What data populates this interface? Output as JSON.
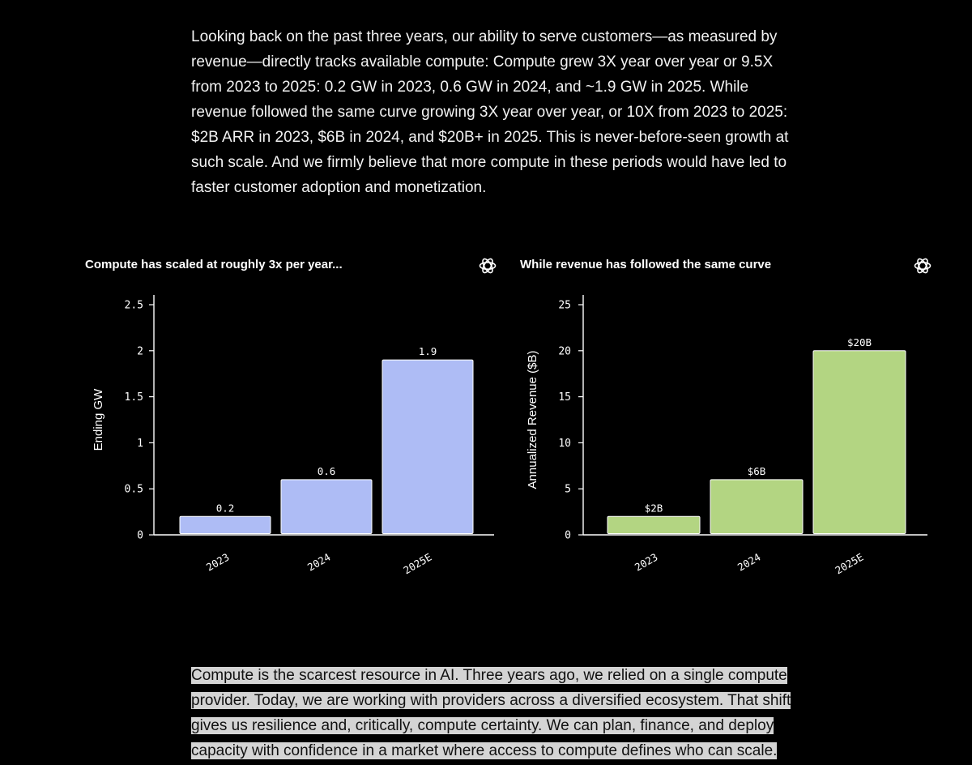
{
  "intro": {
    "paragraph": "Looking back on the past three years, our ability to serve customers—as measured by revenue—directly tracks available compute: Compute grew 3X year over year or 9.5X from 2023 to 2025: 0.2 GW in 2023, 0.6 GW in 2024, and ~1.9 GW in 2025. While revenue followed the same curve growing 3X year over year, or 10X from 2023 to 2025: $2B ARR in 2023, $6B in 2024, and $20B+ in 2025. This is never-before-seen growth at such scale. And we firmly believe that more compute in these periods would have led to faster customer adoption and monetization."
  },
  "outro": {
    "paragraph": "Compute is the scarcest resource in AI. Three years ago, we relied on a single compute provider. Today, we are working with providers across a diversified ecosystem. That shift gives us resilience and, critically, compute certainty. We can plan, finance, and deploy capacity with confidence in a market where access to compute defines who can scale."
  },
  "icons": {
    "logo": "openai-logo-icon"
  },
  "chart_data": [
    {
      "type": "bar",
      "title": "Compute has scaled at roughly 3x per year...",
      "ylabel": "Ending GW",
      "xlabel": "",
      "categories": [
        "2023",
        "2024",
        "2025E"
      ],
      "values": [
        0.2,
        0.6,
        1.9
      ],
      "data_labels": [
        "0.2",
        "0.6",
        "1.9"
      ],
      "ylim": [
        0,
        2.5
      ],
      "yticks": [
        0,
        0.5,
        1,
        1.5,
        2,
        2.5
      ],
      "ytick_labels": [
        "0",
        "0.5",
        "1",
        "1.5",
        "2",
        "2.5"
      ],
      "bar_color": "#aebcf5",
      "grid": false
    },
    {
      "type": "bar",
      "title": "While revenue has followed the same curve",
      "ylabel": "Annualized Revenue ($B)",
      "xlabel": "",
      "categories": [
        "2023",
        "2024",
        "2025E"
      ],
      "values": [
        2,
        6,
        20
      ],
      "data_labels": [
        "$2B",
        "$6B",
        "$20B"
      ],
      "ylim": [
        0,
        25
      ],
      "yticks": [
        0,
        5,
        10,
        15,
        20,
        25
      ],
      "ytick_labels": [
        "0",
        "5",
        "10",
        "15",
        "20",
        "25"
      ],
      "bar_color": "#b3d582",
      "grid": false
    }
  ]
}
